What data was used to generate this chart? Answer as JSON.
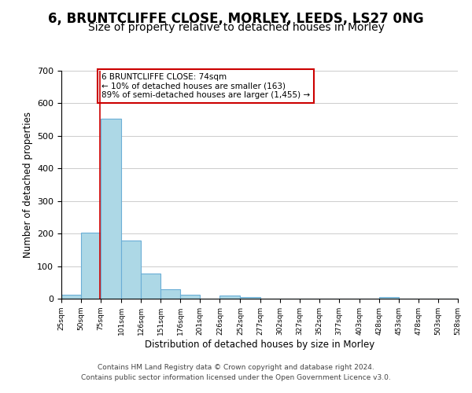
{
  "title": "6, BRUNTCLIFFE CLOSE, MORLEY, LEEDS, LS27 0NG",
  "subtitle": "Size of property relative to detached houses in Morley",
  "xlabel": "Distribution of detached houses by size in Morley",
  "ylabel": "Number of detached properties",
  "bar_edges": [
    25,
    50,
    75,
    101,
    126,
    151,
    176,
    201,
    226,
    252,
    277,
    302,
    327,
    352,
    377,
    403,
    428,
    453,
    478,
    503,
    528
  ],
  "bar_heights": [
    13,
    203,
    553,
    178,
    77,
    30,
    11,
    0,
    10,
    5,
    0,
    0,
    0,
    0,
    0,
    0,
    4,
    0,
    0,
    0,
    0
  ],
  "bar_color": "#add8e6",
  "bar_edgecolor": "#6baed6",
  "vline_x": 74,
  "vline_color": "#cc0000",
  "ylim": [
    0,
    700
  ],
  "yticks": [
    0,
    100,
    200,
    300,
    400,
    500,
    600,
    700
  ],
  "xtick_labels": [
    "25sqm",
    "50sqm",
    "75sqm",
    "101sqm",
    "126sqm",
    "151sqm",
    "176sqm",
    "201sqm",
    "226sqm",
    "252sqm",
    "277sqm",
    "302sqm",
    "327sqm",
    "352sqm",
    "377sqm",
    "403sqm",
    "428sqm",
    "453sqm",
    "478sqm",
    "503sqm",
    "528sqm"
  ],
  "annotation_text": "6 BRUNTCLIFFE CLOSE: 74sqm\n← 10% of detached houses are smaller (163)\n89% of semi-detached houses are larger (1,455) →",
  "annotation_box_color": "#ffffff",
  "annotation_box_edgecolor": "#cc0000",
  "footer_line1": "Contains HM Land Registry data © Crown copyright and database right 2024.",
  "footer_line2": "Contains public sector information licensed under the Open Government Licence v3.0.",
  "title_fontsize": 12,
  "subtitle_fontsize": 10,
  "background_color": "#ffffff",
  "grid_color": "#cccccc"
}
